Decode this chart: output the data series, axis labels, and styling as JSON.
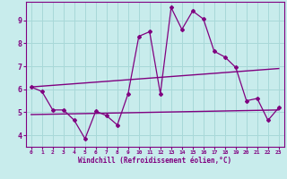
{
  "xlabel": "Windchill (Refroidissement éolien,°C)",
  "background_color": "#c8ecec",
  "grid_color": "#a8d8d8",
  "line_color": "#800080",
  "xlim": [
    -0.5,
    23.5
  ],
  "ylim": [
    3.5,
    9.8
  ],
  "xticks": [
    0,
    1,
    2,
    3,
    4,
    5,
    6,
    7,
    8,
    9,
    10,
    11,
    12,
    13,
    14,
    15,
    16,
    17,
    18,
    19,
    20,
    21,
    22,
    23
  ],
  "yticks": [
    4,
    5,
    6,
    7,
    8,
    9
  ],
  "line1_x": [
    0,
    1,
    2,
    3,
    4,
    5,
    6,
    7,
    8,
    9,
    10,
    11,
    12,
    13,
    14,
    15,
    16,
    17,
    18,
    19,
    20,
    21,
    22,
    23
  ],
  "line1_y": [
    6.1,
    5.9,
    5.1,
    5.1,
    4.65,
    3.85,
    5.05,
    4.85,
    4.45,
    5.8,
    8.3,
    8.5,
    5.8,
    9.55,
    8.6,
    9.4,
    9.05,
    7.65,
    7.4,
    6.95,
    5.5,
    5.6,
    4.65,
    5.2
  ],
  "line2_x": [
    0,
    23
  ],
  "line2_y": [
    4.9,
    5.1
  ],
  "line3_x": [
    0,
    23
  ],
  "line3_y": [
    6.1,
    6.9
  ]
}
